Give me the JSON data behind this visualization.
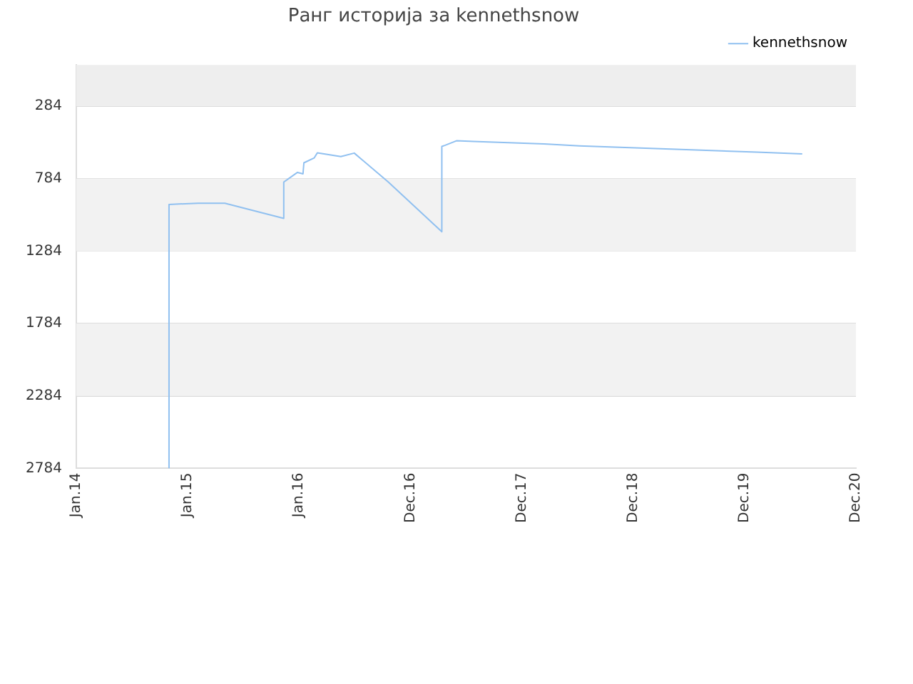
{
  "chart_data": {
    "type": "line",
    "title": "Ранг историја за kennethsnow",
    "legend": "top right",
    "grid": "y",
    "marker": "none",
    "line_style": "solid",
    "xlim": [
      "2014-01-01",
      "2020-12-30"
    ],
    "xticks": [
      {
        "value": "2014-01-01",
        "label": "Jan.14"
      },
      {
        "value": "2015-01-01",
        "label": "Jan.15"
      },
      {
        "value": "2016-01-01",
        "label": "Jan.16"
      },
      {
        "value": "2016-12-31",
        "label": "Dec.16"
      },
      {
        "value": "2017-12-31",
        "label": "Dec.17"
      },
      {
        "value": "2018-12-31",
        "label": "Dec.18"
      },
      {
        "value": "2019-12-31",
        "label": "Dec.19"
      },
      {
        "value": "2020-12-30",
        "label": "Dec.20"
      }
    ],
    "ylim": [
      2784,
      0
    ],
    "yticks": [
      2784,
      2284,
      1784,
      1284,
      784,
      284
    ],
    "bands": [
      {
        "axis": "y",
        "from": 0,
        "to": 284,
        "color": "#eeeeee"
      },
      {
        "axis": "y",
        "from": 784,
        "to": 1284,
        "color": "#f2f2f2"
      },
      {
        "axis": "y",
        "from": 1784,
        "to": 2284,
        "color": "#f2f2f2"
      }
    ],
    "x": [
      "2014-11-01",
      "2014-11-01",
      "2015-02-04",
      "2015-05-03",
      "2015-11-12",
      "2015-11-12",
      "2015-12-27",
      "2016-01-14",
      "2016-01-17",
      "2016-02-20",
      "2016-03-01",
      "2016-05-17",
      "2016-06-30",
      "2016-10-19",
      "2017-04-13",
      "2017-04-13",
      "2017-04-24",
      "2017-05-31",
      "2017-07-25",
      "2017-11-18",
      "2018-03-14",
      "2018-07-08",
      "2018-11-01",
      "2019-02-26",
      "2019-06-22",
      "2019-10-16",
      "2020-02-09",
      "2020-07-07"
    ],
    "series": [
      {
        "name": "kennethsnow",
        "color": "#90c0f0",
        "values": [
          2784,
          962,
          954,
          954,
          1058,
          808,
          741,
          751,
          675,
          641,
          606,
          632,
          608,
          806,
          1151,
          562,
          554,
          523,
          527,
          536,
          545,
          558,
          567,
          575,
          584,
          593,
          601,
          614
        ]
      }
    ]
  }
}
